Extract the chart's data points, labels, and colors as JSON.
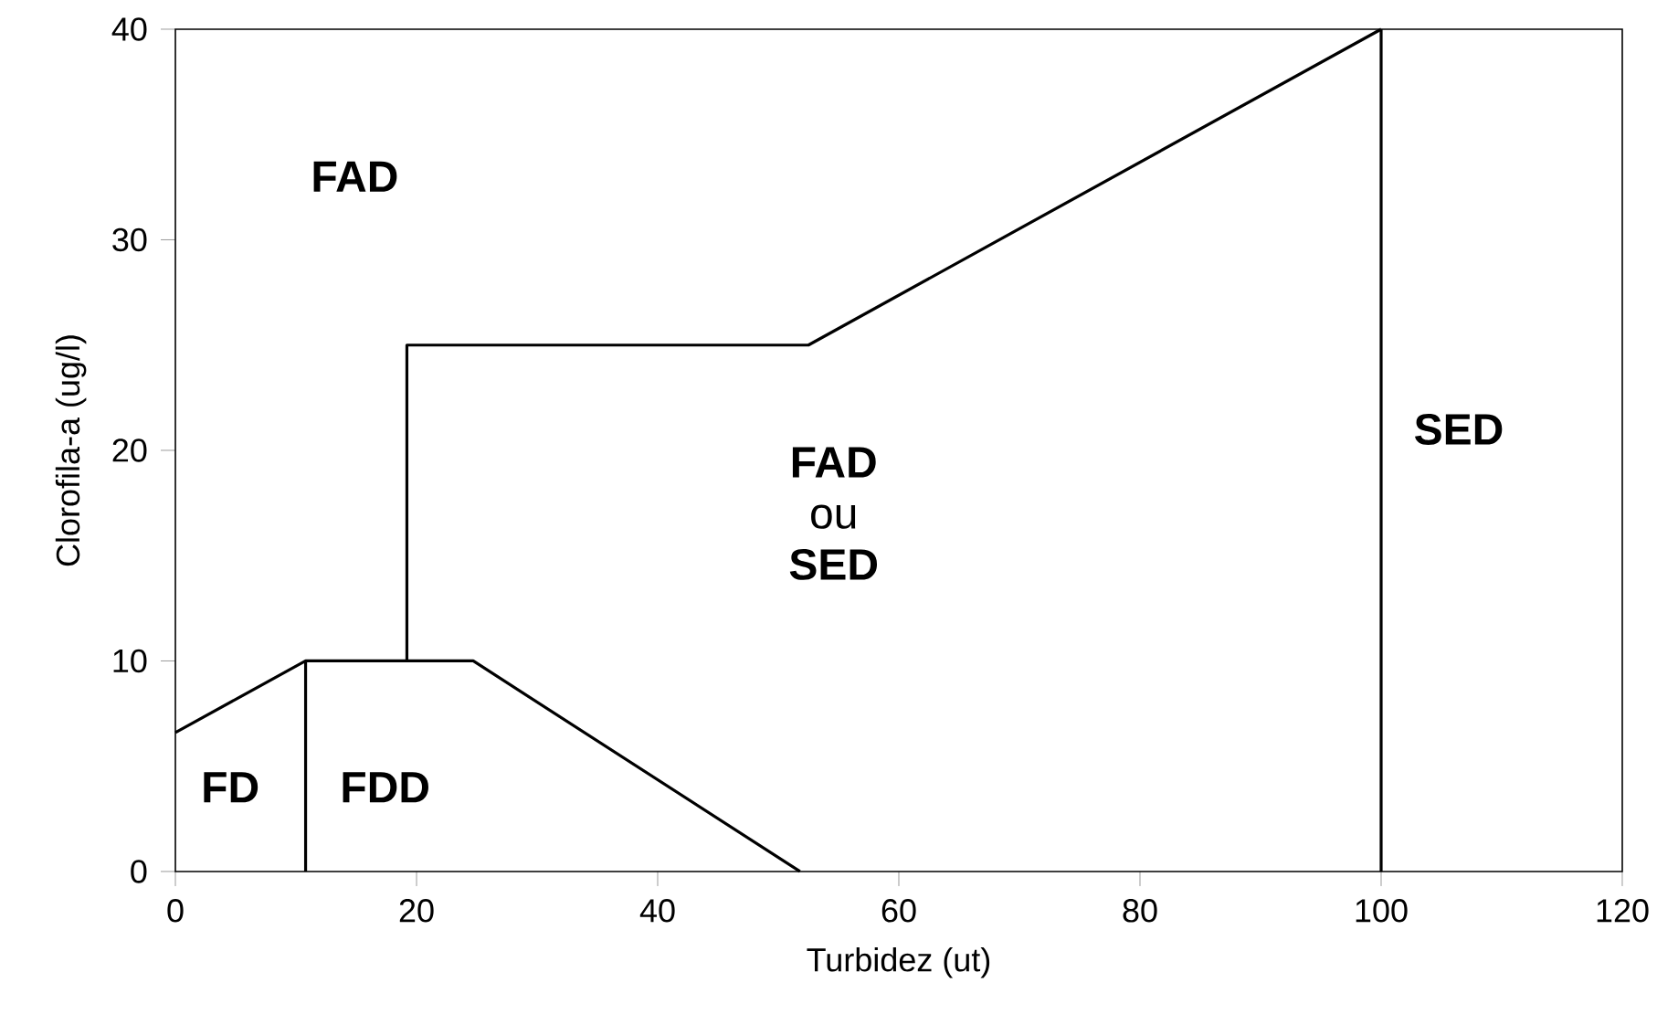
{
  "chart_data": {
    "type": "line",
    "xlabel": "Turbidez (ut)",
    "ylabel": "Clorofila-a (ug/l)",
    "series": [
      {
        "color": "#000000",
        "x": [
          0,
          10.8,
          24.7,
          51.8
        ],
        "values": [
          6.6,
          10,
          10,
          0
        ]
      },
      {
        "color": "#000000",
        "x": [
          10.8,
          10.8
        ],
        "values": [
          0,
          10
        ]
      },
      {
        "color": "#000000",
        "x": [
          19.2,
          19.2,
          52.5,
          100
        ],
        "values": [
          10,
          25,
          25,
          40
        ]
      }
    ],
    "ref_lines": [
      {
        "axis": "x",
        "value": 100,
        "color": "#000000"
      }
    ],
    "xlim": [
      0,
      120
    ],
    "ylim": [
      0,
      40
    ],
    "xticks": [
      0,
      20,
      40,
      60,
      80,
      100,
      120
    ],
    "yticks": [
      0,
      10,
      20,
      30,
      40
    ],
    "grid": false,
    "legend": false,
    "marker": "none",
    "line_style": "solid",
    "annotations": [
      "FAD",
      "FD",
      "FDD",
      "**FAD** ou **SED**",
      "SED"
    ]
  }
}
